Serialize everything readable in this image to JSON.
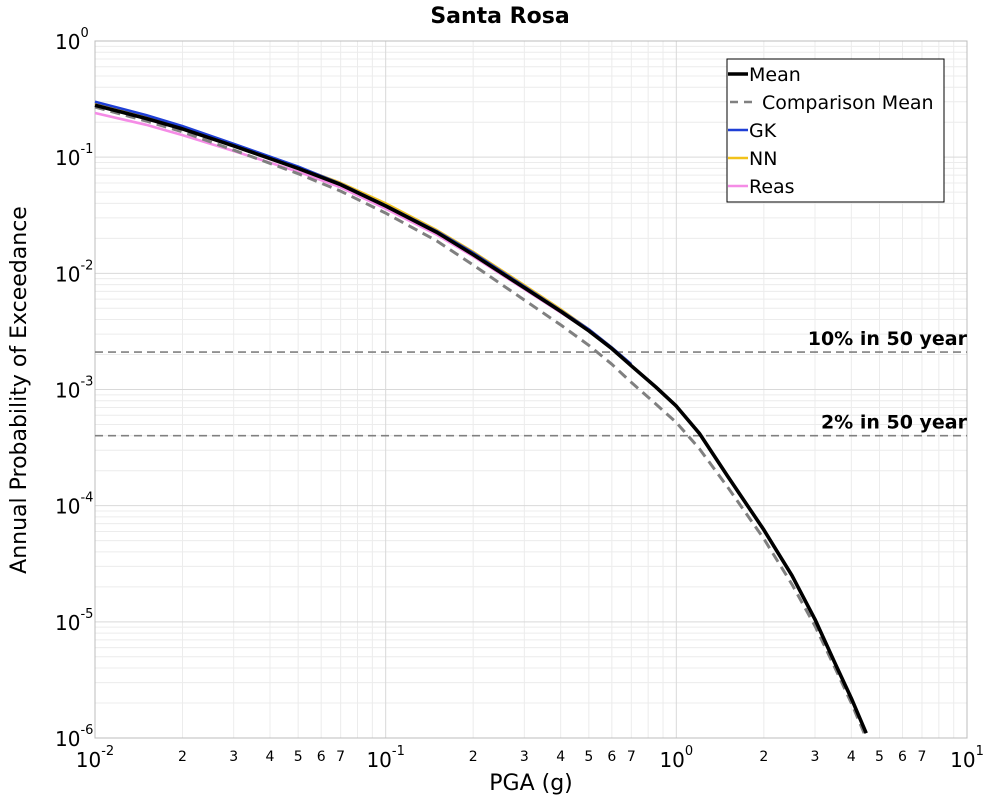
{
  "chart_data": {
    "type": "line",
    "title": "Santa Rosa",
    "xlabel": "PGA (g)",
    "ylabel": "Annual Probability of Exceedance",
    "xscale": "log",
    "yscale": "log",
    "xlim": [
      0.01,
      10
    ],
    "ylim": [
      1e-06,
      1
    ],
    "grid": true,
    "legend_position": "top-right",
    "x_major_ticks": [
      {
        "value": 0.01,
        "base": "10",
        "exp": "-2"
      },
      {
        "value": 0.1,
        "base": "10",
        "exp": "-1"
      },
      {
        "value": 1,
        "base": "10",
        "exp": "0"
      },
      {
        "value": 10,
        "base": "10",
        "exp": "1"
      }
    ],
    "x_minor_labels": [
      "2",
      "3",
      "4",
      "5",
      "6",
      "7"
    ],
    "y_major_ticks": [
      {
        "value": 1,
        "base": "10",
        "exp": "0"
      },
      {
        "value": 0.1,
        "base": "10",
        "exp": "-1"
      },
      {
        "value": 0.01,
        "base": "10",
        "exp": "-2"
      },
      {
        "value": 0.001,
        "base": "10",
        "exp": "-3"
      },
      {
        "value": 0.0001,
        "base": "10",
        "exp": "-4"
      },
      {
        "value": 1e-05,
        "base": "10",
        "exp": "-5"
      },
      {
        "value": 1e-06,
        "base": "10",
        "exp": "-6"
      }
    ],
    "reference_lines": [
      {
        "label": "10% in 50 year",
        "y": 0.0021
      },
      {
        "label": "2% in 50 year",
        "y": 0.0004
      }
    ],
    "series": [
      {
        "name": "Mean",
        "color": "#000000",
        "style": "solid",
        "x": [
          0.01,
          0.015,
          0.02,
          0.03,
          0.05,
          0.07,
          0.1,
          0.15,
          0.2,
          0.3,
          0.4,
          0.5,
          0.6,
          0.7,
          0.85,
          1.0,
          1.2,
          1.5,
          2.0,
          2.5,
          3.0,
          3.5,
          4.0,
          4.5
        ],
        "y": [
          0.28,
          0.215,
          0.175,
          0.125,
          0.08,
          0.058,
          0.038,
          0.0225,
          0.0145,
          0.0075,
          0.0047,
          0.0032,
          0.00225,
          0.0016,
          0.00105,
          0.00072,
          0.00042,
          0.00018,
          6.2e-05,
          2.5e-05,
          1.05e-05,
          4.5e-06,
          2.2e-06,
          1.1e-06
        ]
      },
      {
        "name": "Comparison Mean",
        "color": "#808080",
        "style": "dashed",
        "x": [
          0.01,
          0.015,
          0.02,
          0.03,
          0.05,
          0.07,
          0.1,
          0.15,
          0.2,
          0.3,
          0.4,
          0.5,
          0.6,
          0.7,
          0.85,
          1.0,
          1.2,
          1.5,
          2.0,
          2.5,
          3.0,
          3.5,
          4.0,
          4.5
        ],
        "y": [
          0.27,
          0.205,
          0.165,
          0.115,
          0.072,
          0.051,
          0.033,
          0.019,
          0.0118,
          0.0059,
          0.0036,
          0.0024,
          0.00165,
          0.00115,
          0.00075,
          0.00052,
          0.00031,
          0.000145,
          5.2e-05,
          2.1e-05,
          9.2e-06,
          4.1e-06,
          2e-06,
          1e-06
        ]
      },
      {
        "name": "GK",
        "color": "#1f3fd6",
        "style": "solid",
        "x": [
          0.01,
          0.015,
          0.02,
          0.03,
          0.05,
          0.07,
          0.1,
          0.15,
          0.2,
          0.3,
          0.4,
          0.5,
          0.6,
          0.7
        ],
        "y": [
          0.3,
          0.23,
          0.185,
          0.13,
          0.083,
          0.059,
          0.0385,
          0.023,
          0.015,
          0.0077,
          0.0048,
          0.0033,
          0.0023,
          0.00165
        ]
      },
      {
        "name": "NN",
        "color": "#f2c21a",
        "style": "solid",
        "x": [
          0.01,
          0.015,
          0.02,
          0.03,
          0.05,
          0.07,
          0.1,
          0.15,
          0.2,
          0.3,
          0.4,
          0.5,
          0.6,
          0.7
        ],
        "y": [
          0.29,
          0.22,
          0.178,
          0.127,
          0.082,
          0.06,
          0.04,
          0.0235,
          0.0153,
          0.0079,
          0.0049,
          0.0033,
          0.0023,
          0.00165
        ]
      },
      {
        "name": "Reas",
        "color": "#f58ce6",
        "style": "solid",
        "x": [
          0.01,
          0.015,
          0.02,
          0.03,
          0.05,
          0.07,
          0.1,
          0.15,
          0.2,
          0.3,
          0.4,
          0.5,
          0.6,
          0.7
        ],
        "y": [
          0.24,
          0.19,
          0.155,
          0.113,
          0.075,
          0.055,
          0.036,
          0.0215,
          0.014,
          0.0073,
          0.0046,
          0.0032,
          0.00225,
          0.0016
        ]
      }
    ]
  }
}
